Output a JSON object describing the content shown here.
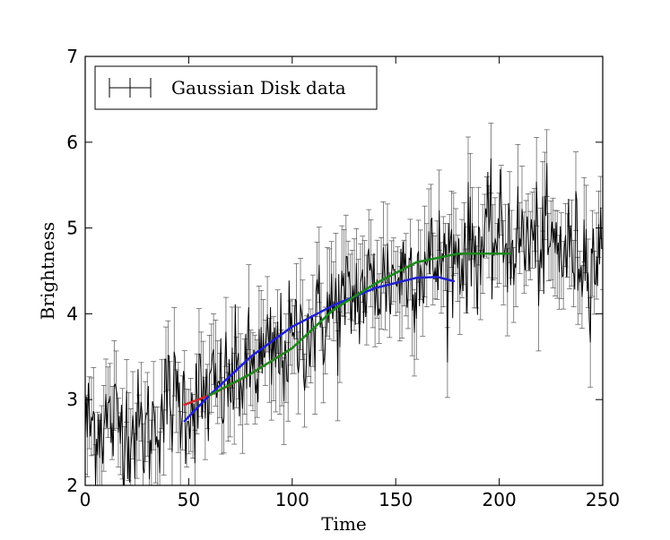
{
  "chart_data": {
    "type": "line",
    "xlabel": "Time",
    "ylabel": "Brightness",
    "xlim": [
      0,
      250
    ],
    "ylim": [
      2,
      7
    ],
    "xticks": [
      0,
      50,
      100,
      150,
      200,
      250
    ],
    "yticks": [
      2,
      3,
      4,
      5,
      6,
      7
    ],
    "grid": false,
    "legend": {
      "position": "top-left",
      "entries": [
        "Gaussian Disk data"
      ]
    },
    "series": [
      {
        "name": "Gaussian Disk data",
        "style": "errorbar",
        "color": "#000000",
        "x_start": 0,
        "x_end": 250,
        "trend_x": [
          0,
          10,
          20,
          30,
          40,
          50,
          60,
          70,
          80,
          90,
          100,
          110,
          120,
          130,
          140,
          150,
          160,
          170,
          180,
          190,
          200,
          210,
          220,
          230,
          240,
          250
        ],
        "trend_y": [
          2.7,
          2.75,
          2.7,
          2.6,
          3.0,
          2.95,
          3.05,
          3.2,
          3.35,
          3.5,
          3.65,
          3.85,
          4.05,
          4.2,
          4.35,
          4.45,
          4.55,
          4.6,
          4.7,
          4.8,
          4.9,
          4.85,
          4.8,
          4.75,
          4.7,
          4.65
        ],
        "noise": 0.35,
        "error": 0.45
      },
      {
        "color": "#d62728",
        "style": "fit",
        "x": [
          48,
          60,
          70,
          80,
          90,
          100
        ],
        "y": [
          2.94,
          3.05,
          3.17,
          3.3,
          3.45,
          3.6
        ]
      },
      {
        "color": "#1f1fd6",
        "style": "fit",
        "x": [
          48,
          60,
          80,
          100,
          120,
          140,
          160,
          170,
          178
        ],
        "y": [
          2.75,
          3.05,
          3.5,
          3.85,
          4.1,
          4.3,
          4.42,
          4.43,
          4.38
        ]
      },
      {
        "color": "#1a8a1a",
        "style": "fit",
        "x": [
          60,
          80,
          100,
          120,
          140,
          160,
          180,
          200,
          205
        ],
        "y": [
          3.05,
          3.3,
          3.6,
          4.05,
          4.35,
          4.6,
          4.7,
          4.7,
          4.7
        ]
      }
    ]
  }
}
